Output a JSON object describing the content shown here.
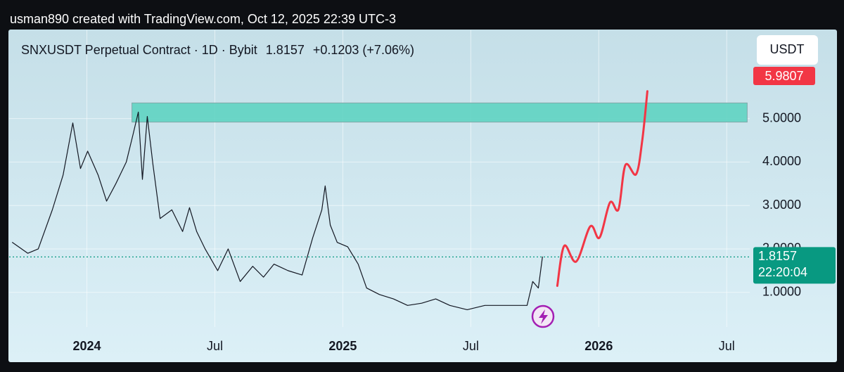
{
  "header": {
    "attribution": "usman890 created with TradingView.com, Oct 12, 2025 22:39 UTC-3"
  },
  "chart_data": {
    "type": "line",
    "symbol": "SNXUSDT Perpetual Contract · 1D · Bybit",
    "change": "+0.1203 (+7.06%)",
    "currency": "USDT",
    "xlim": [
      2023.71,
      2026.59
    ],
    "xticks": [
      {
        "value": 2024,
        "label": "2024"
      },
      {
        "value": 2024.5,
        "label": "Jul"
      },
      {
        "value": 2025,
        "label": "2025"
      },
      {
        "value": 2025.5,
        "label": "Jul"
      },
      {
        "value": 2026,
        "label": "2026"
      },
      {
        "value": 2026.5,
        "label": "Jul"
      }
    ],
    "ylim": [
      0.3,
      7.05
    ],
    "yticks": [
      {
        "value": 1,
        "label": "1.0000"
      },
      {
        "value": 2,
        "label": "2.0000"
      },
      {
        "value": 3,
        "label": "3.0000"
      },
      {
        "value": 4,
        "label": "4.0000"
      },
      {
        "value": 5,
        "label": "5.0000"
      }
    ],
    "grid": true,
    "series": [
      {
        "color": "#131722",
        "x": [
          2023.709,
          2023.769,
          2023.81,
          2023.865,
          2023.907,
          2023.945,
          2023.975,
          2024.003,
          2024.044,
          2024.077,
          2024.113,
          2024.154,
          2024.181,
          2024.201,
          2024.217,
          2024.236,
          2024.258,
          2024.286,
          2024.332,
          2024.374,
          2024.401,
          2024.429,
          2024.462,
          2024.511,
          2024.552,
          2024.599,
          2024.648,
          2024.69,
          2024.731,
          2024.786,
          2024.841,
          2024.882,
          2024.918,
          2024.931,
          2024.951,
          2024.978,
          2025.019,
          2025.06,
          2025.093,
          2025.143,
          2025.198,
          2025.253,
          2025.308,
          2025.363,
          2025.418,
          2025.486,
          2025.555,
          2025.637,
          2025.72,
          2025.742,
          2025.764,
          2025.78
        ],
        "values": [
          2.15,
          1.9,
          2.0,
          2.9,
          3.7,
          4.9,
          3.85,
          4.25,
          3.7,
          3.1,
          3.5,
          4.0,
          4.65,
          5.15,
          3.6,
          5.05,
          3.95,
          2.7,
          2.9,
          2.4,
          2.95,
          2.4,
          2.0,
          1.5,
          2.0,
          1.25,
          1.6,
          1.35,
          1.65,
          1.5,
          1.4,
          2.25,
          2.9,
          3.45,
          2.55,
          2.15,
          2.05,
          1.65,
          1.1,
          0.95,
          0.85,
          0.7,
          0.75,
          0.85,
          0.7,
          0.6,
          0.7,
          0.7,
          0.7,
          1.25,
          1.1,
          1.8157
        ]
      },
      {
        "color": "#f23645",
        "smooth": true,
        "x": [
          2025.838,
          2025.865,
          2025.912,
          2025.967,
          2026.003,
          2026.044,
          2026.077,
          2026.104,
          2026.146,
          2026.17,
          2026.19
        ],
        "values": [
          1.15,
          2.07,
          1.71,
          2.52,
          2.26,
          3.07,
          2.91,
          3.93,
          3.72,
          4.5,
          5.63
        ]
      }
    ],
    "zone": {
      "color": "#5fd3c2",
      "xlim": [
        2024.176,
        2026.58
      ],
      "ylim": [
        4.92,
        5.36
      ]
    },
    "price_label": {
      "value": 1.8157,
      "label": "1.8157",
      "color": "#089981"
    },
    "countdown": "22:20:04",
    "target_label": {
      "value": 5.9807,
      "label": "5.9807",
      "color": "#f23645"
    }
  }
}
